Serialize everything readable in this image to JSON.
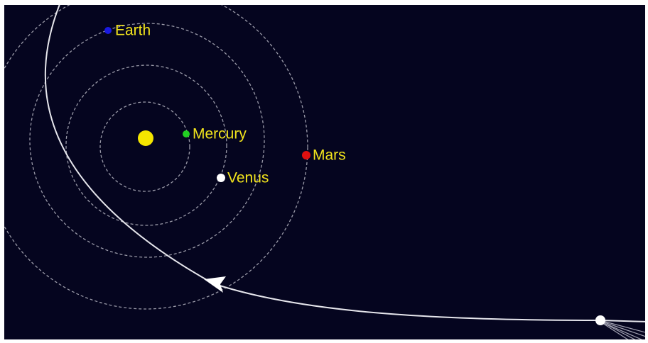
{
  "planets": [
    {
      "label": "Earth"
    },
    {
      "label": "Mercury"
    },
    {
      "label": "Venus"
    },
    {
      "label": "Mars"
    }
  ]
}
